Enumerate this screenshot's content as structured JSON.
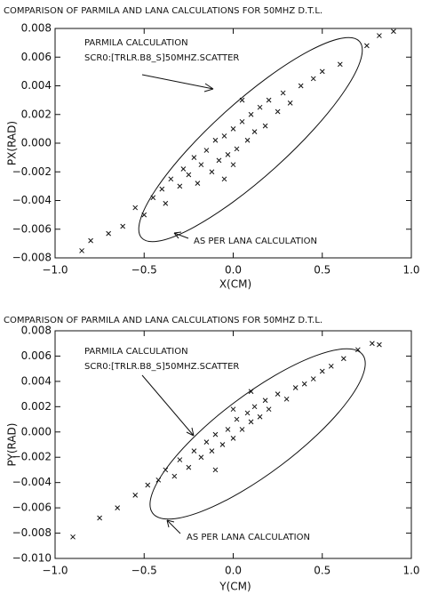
{
  "chart_data": [
    {
      "type": "scatter",
      "title": "COMPARISON OF PARMILA AND LANA CALCULATIONS FOR 50MHZ D.T.L.",
      "x_label": "X(CM)",
      "y_label": "PX(RAD)",
      "annotations": [
        "PARMILA CALCULATION",
        "SCR0:[TRLR.B8_S]50MHZ.SCATTER",
        "AS PER LANA CALCULATION"
      ],
      "color": "#111111",
      "marker": "x",
      "xlim": [
        -1,
        1
      ],
      "ylim": [
        -0.008,
        0.008
      ],
      "xticks": [
        {
          "value": -1,
          "label": "−1.0"
        },
        {
          "value": -0.5,
          "label": "−0.5"
        },
        {
          "value": 0,
          "label": "0.0"
        },
        {
          "value": 0.5,
          "label": "0.5"
        },
        {
          "value": 1,
          "label": "1.0"
        }
      ],
      "yticks": [
        {
          "value": -0.008,
          "label": "−0.008"
        },
        {
          "value": -0.006,
          "label": "−0.006"
        },
        {
          "value": -0.004,
          "label": "−0.004"
        },
        {
          "value": -0.002,
          "label": "−0.002"
        },
        {
          "value": 0,
          "label": "0.000"
        },
        {
          "value": 0.002,
          "label": "0.002"
        },
        {
          "value": 0.004,
          "label": "0.004"
        },
        {
          "value": 0.006,
          "label": "0.006"
        },
        {
          "value": 0.008,
          "label": "0.008"
        }
      ],
      "x": [
        -0.85,
        -0.8,
        -0.7,
        -0.62,
        -0.55,
        -0.5,
        -0.45,
        -0.4,
        -0.38,
        -0.35,
        -0.3,
        -0.28,
        -0.25,
        -0.22,
        -0.2,
        -0.18,
        -0.15,
        -0.12,
        -0.1,
        -0.08,
        -0.05,
        -0.03,
        0,
        0.02,
        0.05,
        0.08,
        0.1,
        0.12,
        0.15,
        0.18,
        0.2,
        0.25,
        0.28,
        0.32,
        0.38,
        0.45,
        0.5,
        0.6,
        0.75,
        0.82,
        0.9,
        -0.05,
        0.05,
        0
      ],
      "y": [
        -0.0075,
        -0.0068,
        -0.0063,
        -0.0058,
        -0.0045,
        -0.005,
        -0.0038,
        -0.0032,
        -0.0042,
        -0.0025,
        -0.003,
        -0.0018,
        -0.0022,
        -0.001,
        -0.0028,
        -0.0015,
        -0.0005,
        -0.002,
        0.0002,
        -0.0012,
        0.0005,
        -0.0008,
        0.001,
        -0.0004,
        0.0015,
        0.0002,
        0.002,
        0.0008,
        0.0025,
        0.0012,
        0.003,
        0.0022,
        0.0035,
        0.0028,
        0.004,
        0.0045,
        0.005,
        0.0055,
        0.0068,
        0.0075,
        0.0078,
        -0.0025,
        0.003,
        -0.0015
      ]
    },
    {
      "type": "scatter",
      "title": "COMPARISON OF PARMILA AND LANA CALCULATIONS FOR 50MHZ D.T.L.",
      "x_label": "Y(CM)",
      "y_label": "PY(RAD)",
      "annotations": [
        "PARMILA CALCULATION",
        "SCR0:[TRLR.B8_S]50MHZ.SCATTER",
        "AS PER LANA CALCULATION"
      ],
      "color": "#111111",
      "marker": "x",
      "xlim": [
        -1,
        1
      ],
      "ylim": [
        -0.01,
        0.008
      ],
      "xticks": [
        {
          "value": -1,
          "label": "−1.0"
        },
        {
          "value": -0.5,
          "label": "−0.5"
        },
        {
          "value": 0,
          "label": "0.0"
        },
        {
          "value": 0.5,
          "label": "0.5"
        },
        {
          "value": 1,
          "label": "1.0"
        }
      ],
      "yticks": [
        {
          "value": -0.01,
          "label": "−0.010"
        },
        {
          "value": -0.008,
          "label": "−0.008"
        },
        {
          "value": -0.006,
          "label": "−0.006"
        },
        {
          "value": -0.004,
          "label": "−0.004"
        },
        {
          "value": -0.002,
          "label": "−0.002"
        },
        {
          "value": 0,
          "label": "0.000"
        },
        {
          "value": 0.002,
          "label": "0.002"
        },
        {
          "value": 0.004,
          "label": "0.004"
        },
        {
          "value": 0.006,
          "label": "0.006"
        },
        {
          "value": 0.008,
          "label": "0.008"
        }
      ],
      "x": [
        -0.9,
        -0.75,
        -0.65,
        -0.55,
        -0.48,
        -0.42,
        -0.38,
        -0.33,
        -0.3,
        -0.25,
        -0.22,
        -0.18,
        -0.15,
        -0.12,
        -0.1,
        -0.06,
        -0.03,
        0,
        0.02,
        0.05,
        0.08,
        0.1,
        0.12,
        0.15,
        0.18,
        0.2,
        0.25,
        0.3,
        0.35,
        0.4,
        0.45,
        0.5,
        0.55,
        0.62,
        0.7,
        0.78,
        0.82,
        -0.1,
        0.1,
        0
      ],
      "y": [
        -0.0083,
        -0.0068,
        -0.006,
        -0.005,
        -0.0042,
        -0.0038,
        -0.003,
        -0.0035,
        -0.0022,
        -0.0028,
        -0.0015,
        -0.002,
        -0.0008,
        -0.0015,
        -0.0002,
        -0.001,
        0.0002,
        -0.0005,
        0.001,
        0.0002,
        0.0015,
        0.0008,
        0.002,
        0.0012,
        0.0025,
        0.0018,
        0.003,
        0.0026,
        0.0035,
        0.0038,
        0.0042,
        0.0048,
        0.0052,
        0.0058,
        0.0065,
        0.007,
        0.0069,
        -0.003,
        0.0032,
        0.0018
      ]
    }
  ]
}
